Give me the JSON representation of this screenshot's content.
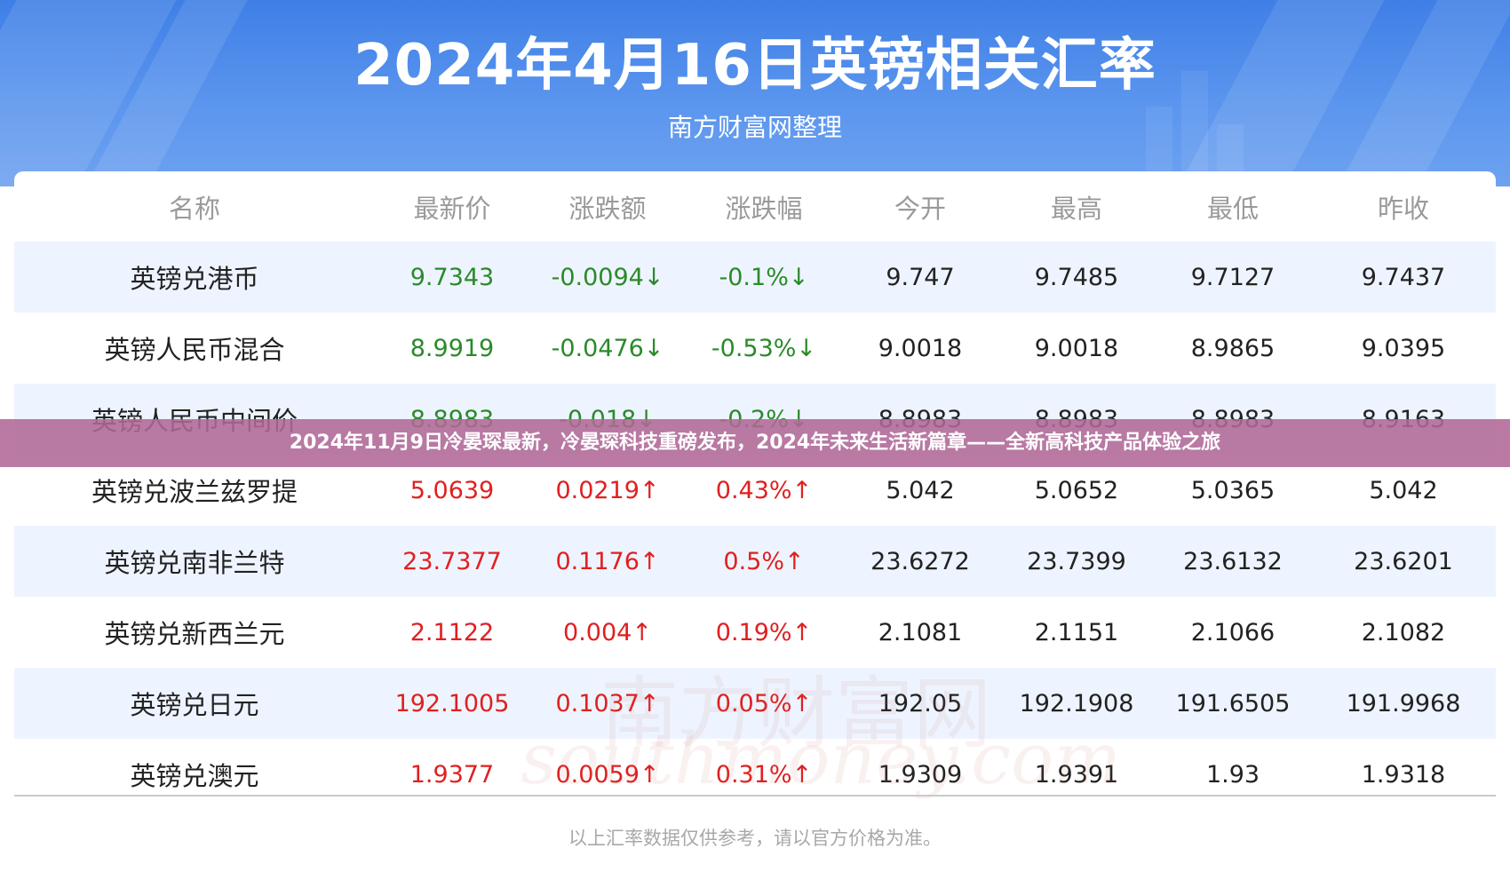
{
  "header": {
    "title": "2024年4月16日英镑相关汇率",
    "subtitle": "南方财富网整理"
  },
  "table": {
    "columns": [
      "名称",
      "最新价",
      "涨跌额",
      "涨跌幅",
      "今开",
      "最高",
      "最低",
      "昨收"
    ],
    "rows": [
      {
        "name": "英镑兑港币",
        "price": "9.7343",
        "change": "-0.0094↓",
        "pct": "-0.1%↓",
        "open": "9.747",
        "high": "9.7485",
        "low": "9.7127",
        "prev": "9.7437",
        "trend": "down"
      },
      {
        "name": "英镑人民币混合",
        "price": "8.9919",
        "change": "-0.0476↓",
        "pct": "-0.53%↓",
        "open": "9.0018",
        "high": "9.0018",
        "low": "8.9865",
        "prev": "9.0395",
        "trend": "down"
      },
      {
        "name": "英镑人民币中间价",
        "price": "8.8983",
        "change": "-0.018↓",
        "pct": "-0.2%↓",
        "open": "8.8983",
        "high": "8.8983",
        "low": "8.8983",
        "prev": "8.9163",
        "trend": "down"
      },
      {
        "name": "英镑兑波兰兹罗提",
        "price": "5.0639",
        "change": "0.0219↑",
        "pct": "0.43%↑",
        "open": "5.042",
        "high": "5.0652",
        "low": "5.0365",
        "prev": "5.042",
        "trend": "up"
      },
      {
        "name": "英镑兑南非兰特",
        "price": "23.7377",
        "change": "0.1176↑",
        "pct": "0.5%↑",
        "open": "23.6272",
        "high": "23.7399",
        "low": "23.6132",
        "prev": "23.6201",
        "trend": "up"
      },
      {
        "name": "英镑兑新西兰元",
        "price": "2.1122",
        "change": "0.004↑",
        "pct": "0.19%↑",
        "open": "2.1081",
        "high": "2.1151",
        "low": "2.1066",
        "prev": "2.1082",
        "trend": "up"
      },
      {
        "name": "英镑兑日元",
        "price": "192.1005",
        "change": "0.1037↑",
        "pct": "0.05%↑",
        "open": "192.05",
        "high": "192.1908",
        "low": "191.6505",
        "prev": "191.9968",
        "trend": "up"
      },
      {
        "name": "英镑兑澳元",
        "price": "1.9377",
        "change": "0.0059↑",
        "pct": "0.31%↑",
        "open": "1.9309",
        "high": "1.9391",
        "low": "1.93",
        "prev": "1.9318",
        "trend": "up"
      }
    ]
  },
  "note": "以上汇率数据仅供参考，请以官方价格为准。",
  "watermark": {
    "cn": "南方财富网",
    "en": "southmoney.com"
  },
  "caption": "2024年11月9日冷晏琛最新，冷晏琛科技重磅发布，2024年未来生活新篇章——全新高科技产品体验之旅",
  "colors": {
    "banner": "#4a88ea",
    "up": "#e02020",
    "down": "#2a8a2a",
    "row_alt": "#eef4ff",
    "caption_bg": "#b06896"
  }
}
